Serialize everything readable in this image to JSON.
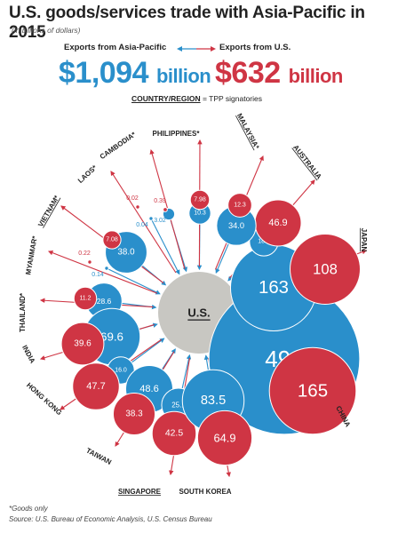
{
  "title": "U.S. goods/services trade with Asia-Pacific in 2015",
  "subtitle": "(in billions of dollars)",
  "legend": {
    "exports_asia_label": "Exports from Asia-Pacific",
    "exports_us_label": "Exports from U.S.",
    "exports_asia_amount": "$1,094",
    "exports_us_amount": "$632",
    "amount_unit": "billion",
    "tpp_key": "COUNTRY/REGION",
    "tpp_desc": " = TPP signatories"
  },
  "hub_label": "U.S.",
  "colors": {
    "asia": "#2a8fcb",
    "us": "#cf3544",
    "hub": "#c8c7c2"
  },
  "chart_data": {
    "type": "diagram",
    "partners": [
      {
        "name": "CHINA",
        "tpp": false,
        "asia": 499,
        "us": 165,
        "asia_text": "499",
        "us_text": "165"
      },
      {
        "name": "JAPAN",
        "tpp": true,
        "asia": 163,
        "us": 108,
        "asia_text": "163",
        "us_text": "108"
      },
      {
        "name": "AUSTRALIA",
        "tpp": true,
        "asia": 18.0,
        "us": 46.9,
        "asia_text": "18.0",
        "us_text": "46.9"
      },
      {
        "name": "MALAYSIA*",
        "tpp": true,
        "asia": 34.0,
        "us": 12.3,
        "asia_text": "34.0",
        "us_text": "12.3"
      },
      {
        "name": "PHILIPPINES*",
        "tpp": false,
        "asia": 10.3,
        "us": 7.98,
        "asia_text": "10.3",
        "us_text": "7.98"
      },
      {
        "name": "CAMBODIA*",
        "tpp": false,
        "asia": 3.02,
        "us": 0.39,
        "asia_text": "3.02",
        "us_text": "0.39"
      },
      {
        "name": "LAOS*",
        "tpp": false,
        "asia": 0.04,
        "us": 0.02,
        "asia_text": "0.04",
        "us_text": "0.02"
      },
      {
        "name": "VIETNAM*",
        "tpp": true,
        "asia": 38.0,
        "us": 7.08,
        "asia_text": "38.0",
        "us_text": "7.08"
      },
      {
        "name": "MYANMAR*",
        "tpp": false,
        "asia": 0.14,
        "us": 0.22,
        "asia_text": "0.14",
        "us_text": "0.22"
      },
      {
        "name": "THAILAND*",
        "tpp": false,
        "asia": 28.6,
        "us": 11.2,
        "asia_text": "28.6",
        "us_text": "11.2"
      },
      {
        "name": "INDIA",
        "tpp": false,
        "asia": 69.6,
        "us": 39.6,
        "asia_text": "69.6",
        "us_text": "39.6"
      },
      {
        "name": "HONG KONG",
        "tpp": false,
        "asia": 16.0,
        "us": 47.7,
        "asia_text": "16.0",
        "us_text": "47.7"
      },
      {
        "name": "TAIWAN",
        "tpp": false,
        "asia": 48.6,
        "us": 38.3,
        "asia_text": "48.6",
        "us_text": "38.3"
      },
      {
        "name": "SINGAPORE",
        "tpp": true,
        "asia": 25.1,
        "us": 42.5,
        "asia_text": "25.1",
        "us_text": "42.5"
      },
      {
        "name": "SOUTH KOREA",
        "tpp": false,
        "asia": 83.5,
        "us": 64.9,
        "asia_text": "83.5",
        "us_text": "64.9"
      }
    ]
  },
  "footnote": "*Goods only",
  "source": "Source: U.S. Bureau of Economic Analysis, U.S. Census Bureau"
}
